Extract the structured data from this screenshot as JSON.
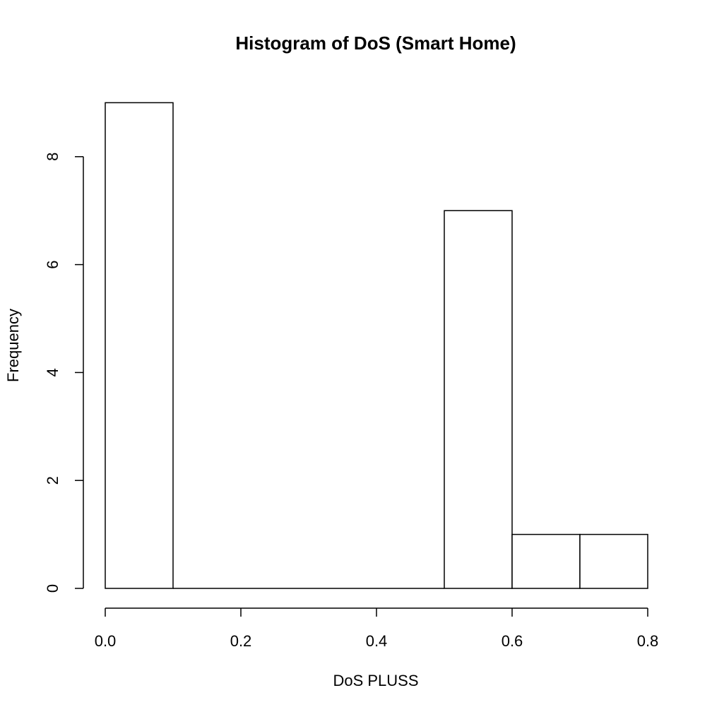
{
  "chart_data": {
    "type": "bar",
    "title": "Histogram of DoS (Smart Home)",
    "xlabel": "DoS PLUSS",
    "ylabel": "Frequency",
    "bins": [
      {
        "start": 0.0,
        "end": 0.1,
        "count": 9
      },
      {
        "start": 0.1,
        "end": 0.2,
        "count": 0
      },
      {
        "start": 0.2,
        "end": 0.3,
        "count": 0
      },
      {
        "start": 0.3,
        "end": 0.4,
        "count": 0
      },
      {
        "start": 0.4,
        "end": 0.5,
        "count": 0
      },
      {
        "start": 0.5,
        "end": 0.6,
        "count": 7
      },
      {
        "start": 0.6,
        "end": 0.7,
        "count": 1
      },
      {
        "start": 0.7,
        "end": 0.8,
        "count": 1
      }
    ],
    "xlim": [
      0.0,
      0.8
    ],
    "ylim": [
      0,
      9
    ],
    "x_ticks": [
      "0.0",
      "0.2",
      "0.4",
      "0.6",
      "0.8"
    ],
    "y_ticks": [
      "0",
      "2",
      "4",
      "6",
      "8"
    ],
    "grid": false,
    "colors": {
      "bar_fill": "#ffffff",
      "bar_stroke": "#000000"
    }
  }
}
